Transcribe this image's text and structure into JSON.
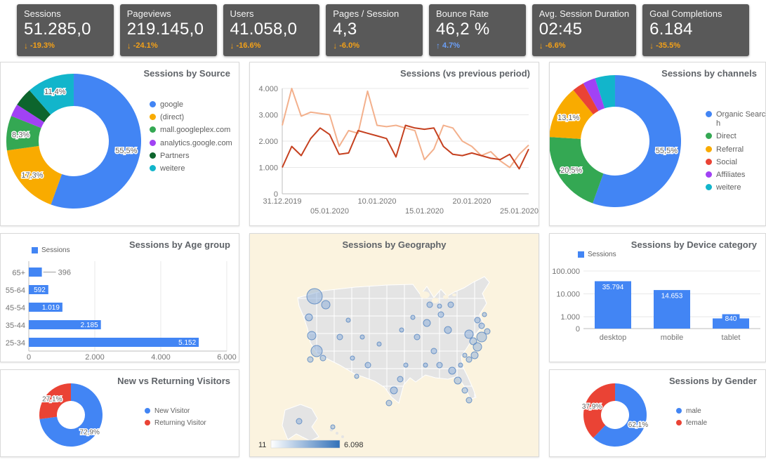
{
  "kpis": [
    {
      "label": "Sessions",
      "value": "51.285,0",
      "delta": "-19.3%",
      "direction": "down"
    },
    {
      "label": "Pageviews",
      "value": "219.145,0",
      "delta": "-24.1%",
      "direction": "down"
    },
    {
      "label": "Users",
      "value": "41.058,0",
      "delta": "-16.6%",
      "direction": "down"
    },
    {
      "label": "Pages / Session",
      "value": "4,3",
      "delta": "-6.0%",
      "direction": "down"
    },
    {
      "label": "Bounce Rate",
      "value": "46,2 %",
      "delta": "4.7%",
      "direction": "up"
    },
    {
      "label": "Avg. Session Duration",
      "value": "02:45",
      "delta": "-6.6%",
      "direction": "down"
    },
    {
      "label": "Goal Completions",
      "value": "6.184",
      "delta": "-35.5%",
      "direction": "down"
    }
  ],
  "colors": {
    "kpi_background": "#595959",
    "delta_down": "#f4a118",
    "delta_up": "#6b9ff7",
    "primary_blue": "#4285f4"
  },
  "chart_data": [
    {
      "id": "sessions-by-source",
      "type": "pie",
      "title": "Sessions by Source",
      "labels": [
        "google",
        "(direct)",
        "mall.googleplex.com",
        "analytics.google.com",
        "Partners",
        "weitere"
      ],
      "values": [
        55.5,
        17.3,
        8.3,
        3.0,
        4.5,
        11.4
      ],
      "pct_labels": [
        "55,5%",
        "17,3%",
        "8,3%",
        "",
        "",
        "11,4%"
      ],
      "colors": [
        "#4285f4",
        "#f9ab00",
        "#34a853",
        "#a142f4",
        "#0d652d",
        "#12b5cb"
      ],
      "legend_position": "right"
    },
    {
      "id": "sessions-trend",
      "type": "line",
      "title": "Sessions (vs previous period)",
      "x_ticks": [
        "31.12.2019",
        "05.01.2020",
        "10.01.2020",
        "15.01.2020",
        "20.01.2020",
        "25.01.2020"
      ],
      "y_ticks": [
        "0",
        "1.000",
        "2.000",
        "3.000",
        "4.000"
      ],
      "ylim": [
        0,
        4000
      ],
      "grid": true,
      "series": [
        {
          "name": "Sessions",
          "color": "#c5401f",
          "values": [
            1000,
            1800,
            1450,
            2100,
            2500,
            2250,
            1500,
            1550,
            2400,
            2300,
            2200,
            2100,
            1400,
            2600,
            2500,
            2450,
            2500,
            1800,
            1500,
            1450,
            1550,
            1450,
            1350,
            1300,
            1500,
            950,
            1700
          ]
        },
        {
          "name": "Sessions (previous period)",
          "color": "#f3b08c",
          "values": [
            2600,
            4000,
            2950,
            3100,
            3050,
            3000,
            1800,
            2400,
            2300,
            3900,
            2600,
            2550,
            2600,
            2500,
            2400,
            1300,
            1700,
            2600,
            2500,
            2000,
            1800,
            1450,
            1600,
            1250,
            1000,
            1500,
            1850
          ]
        }
      ]
    },
    {
      "id": "sessions-by-channels",
      "type": "pie",
      "title": "Sessions by channels",
      "labels": [
        "Organic Search",
        "Direct",
        "Referral",
        "Social",
        "Affiliates",
        "weitere"
      ],
      "values": [
        55.5,
        20.5,
        13.1,
        2.9,
        3.1,
        4.9
      ],
      "pct_labels": [
        "55,5%",
        "20,5%",
        "13,1%",
        "",
        "",
        ""
      ],
      "colors": [
        "#4285f4",
        "#34a853",
        "#f9ab00",
        "#ea4335",
        "#a142f4",
        "#12b5cb"
      ],
      "legend_position": "right"
    },
    {
      "id": "sessions-by-age-group",
      "type": "bar",
      "orientation": "horizontal",
      "title": "Sessions by Age group",
      "legend": [
        "Sessions"
      ],
      "categories": [
        "65+",
        "55-64",
        "45-54",
        "35-44",
        "25-34"
      ],
      "values": [
        396,
        592,
        1019,
        2185,
        5152
      ],
      "value_labels": [
        "396",
        "592",
        "1.019",
        "2.185",
        "5.152"
      ],
      "x_ticks": [
        "0",
        "2.000",
        "4.000",
        "6.000"
      ],
      "xlim": [
        0,
        6000
      ],
      "color": "#4285f4"
    },
    {
      "id": "sessions-by-geography",
      "type": "geo",
      "title": "Sessions by Geography",
      "region": "United States",
      "legend_min": "11",
      "legend_max": "6.098"
    },
    {
      "id": "sessions-by-device",
      "type": "bar",
      "orientation": "vertical",
      "scale": "log",
      "title": "Sessions by Device category",
      "legend": [
        "Sessions"
      ],
      "categories": [
        "desktop",
        "mobile",
        "tablet"
      ],
      "values": [
        35794,
        14653,
        840
      ],
      "value_labels": [
        "35.794",
        "14.653",
        "840"
      ],
      "y_ticks": [
        "0",
        "1.000",
        "10.000",
        "100.000"
      ],
      "color": "#4285f4"
    },
    {
      "id": "new-vs-returning",
      "type": "pie",
      "title": "New vs Returning Visitors",
      "labels": [
        "New Visitor",
        "Returning Visitor"
      ],
      "values": [
        72.9,
        27.1
      ],
      "pct_labels": [
        "72,9%",
        "27,1%"
      ],
      "colors": [
        "#4285f4",
        "#ea4335"
      ],
      "legend_position": "right"
    },
    {
      "id": "sessions-by-gender",
      "type": "pie",
      "title": "Sessions by Gender",
      "labels": [
        "male",
        "female"
      ],
      "values": [
        62.1,
        37.9
      ],
      "pct_labels": [
        "62,1%",
        "37,9%"
      ],
      "colors": [
        "#4285f4",
        "#ea4335"
      ],
      "legend_position": "right"
    }
  ]
}
